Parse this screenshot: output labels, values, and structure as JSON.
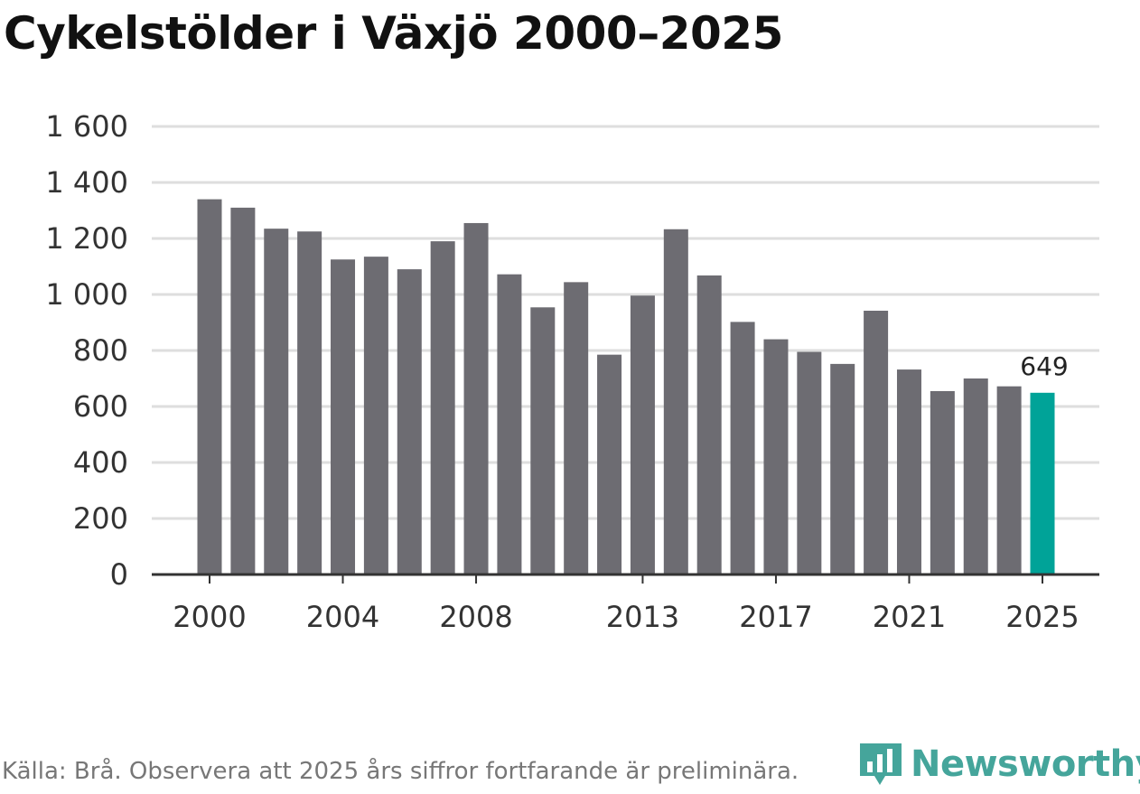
{
  "title": "Cykelstölder i Växjö 2000–2025",
  "source": "Källa: Brå. Observera att 2025 års siffror fortfarande är preliminära.",
  "brand": {
    "name": "Newsworthy",
    "icon": "bar-chart-speech-bubble-icon",
    "color": "#45a59b"
  },
  "chart_data": {
    "type": "bar",
    "categories": [
      "2000",
      "2001",
      "2002",
      "2003",
      "2004",
      "2005",
      "2006",
      "2007",
      "2008",
      "2009",
      "2010",
      "2011",
      "2012",
      "2013",
      "2014",
      "2015",
      "2016",
      "2017",
      "2018",
      "2019",
      "2020",
      "2021",
      "2022",
      "2023",
      "2024",
      "2025"
    ],
    "values": [
      1340,
      1310,
      1235,
      1225,
      1125,
      1135,
      1090,
      1190,
      1255,
      1072,
      954,
      1044,
      785,
      996,
      1233,
      1068,
      902,
      840,
      795,
      752,
      942,
      732,
      655,
      700,
      672,
      649
    ],
    "x_tick_labels": [
      "2000",
      "2004",
      "2008",
      "2013",
      "2017",
      "2021",
      "2025"
    ],
    "y_ticks": [
      0,
      200,
      400,
      600,
      800,
      1000,
      1200,
      1400,
      1600
    ],
    "y_tick_labels": [
      "0",
      "200",
      "400",
      "600",
      "800",
      "1 000",
      "1 200",
      "1 400",
      "1 600"
    ],
    "ylim": [
      0,
      1600
    ],
    "grid": true,
    "colors": {
      "default": "#6d6c72",
      "highlight": "#00a398",
      "grid": "#dedede",
      "axis": "#333333"
    },
    "highlight_index": 25,
    "annotations": [
      {
        "category": "2025",
        "text": "649"
      }
    ]
  }
}
